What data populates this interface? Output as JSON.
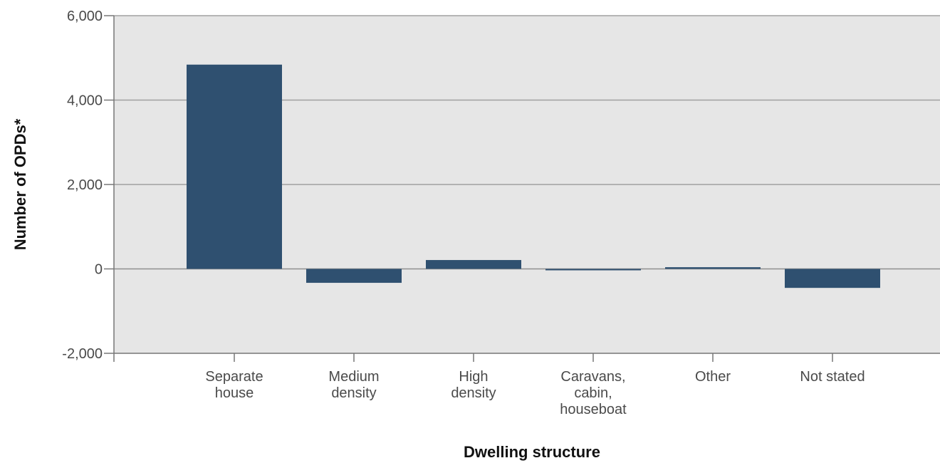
{
  "chart_data": {
    "type": "bar",
    "categories": [
      [
        "Separate",
        "house"
      ],
      [
        "Medium",
        "density"
      ],
      [
        "High",
        "density"
      ],
      [
        "Caravans,",
        "cabin,",
        "houseboat"
      ],
      [
        "Other"
      ],
      [
        "Not stated"
      ]
    ],
    "values": [
      4840,
      -330,
      210,
      -30,
      40,
      -450
    ],
    "xlabel": "Dwelling structure",
    "ylabel": "Number of OPDs*",
    "ylim": [
      -2000,
      6000
    ],
    "yticks": [
      -2000,
      0,
      2000,
      4000,
      6000
    ],
    "ytick_labels": [
      "-2,000",
      "0",
      "2,000",
      "4,000",
      "6,000"
    ],
    "grid": true,
    "legend": "none",
    "colors": {
      "bar": "#2f5070",
      "plot_background": "#e6e6e6",
      "gridline": "#a0a0a0",
      "zero_line": "#909090"
    }
  }
}
